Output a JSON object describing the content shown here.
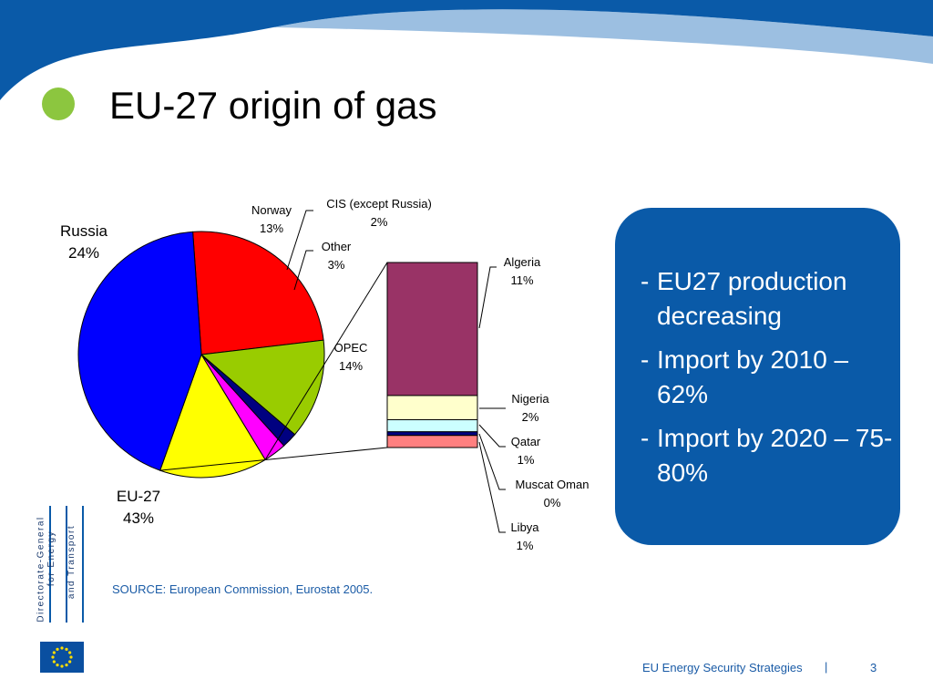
{
  "slide": {
    "title": "EU-27 origin of gas",
    "bullets": [
      "EU27 production decreasing",
      "Import by 2010 – 62%",
      "Import by 2020 – 75-80%"
    ],
    "source": "SOURCE: European Commission, Eurostat  2005.",
    "footer": "EU Energy Security Strategies",
    "footer_separator": "|",
    "page_number": "3",
    "dg_logo": {
      "line1": "Directorate-General",
      "line2": "for Energy",
      "line3": "and Transport"
    }
  },
  "colors": {
    "header_blue": "#0a5aa8",
    "bullet_green": "#8cc63f",
    "callout_blue": "#0a5aa8",
    "source_text": "#1a5ba6"
  },
  "chart_data": {
    "type": "pie",
    "subtype": "pie-of-bar",
    "pie": [
      {
        "name": "Russia",
        "value": 24,
        "label": "24%",
        "color": "#ff0000"
      },
      {
        "name": "Norway",
        "value": 13,
        "label": "13%",
        "color": "#99cc00"
      },
      {
        "name": "CIS (except Russia)",
        "value": 2,
        "label": "2%",
        "color": "#000080"
      },
      {
        "name": "Other",
        "value": 3,
        "label": "3%",
        "color": "#ff00ff"
      },
      {
        "name": "OPEC",
        "value": 14,
        "label": "14%",
        "color": "#ffff00"
      },
      {
        "name": "EU-27",
        "value": 43,
        "label": "43%",
        "color": "#0000ff"
      }
    ],
    "bar_breakdown_of": "OPEC",
    "bar": [
      {
        "name": "Algeria",
        "value": 11,
        "label": "11%",
        "color": "#993366"
      },
      {
        "name": "Nigeria",
        "value": 2,
        "label": "2%",
        "color": "#ffffcc"
      },
      {
        "name": "Qatar",
        "value": 1,
        "label": "1%",
        "color": "#ccffff"
      },
      {
        "name": "Muscat Oman",
        "value": 0.3,
        "label": "0%",
        "color": "#000080"
      },
      {
        "name": "Libya",
        "value": 1,
        "label": "1%",
        "color": "#ff8080"
      }
    ]
  }
}
